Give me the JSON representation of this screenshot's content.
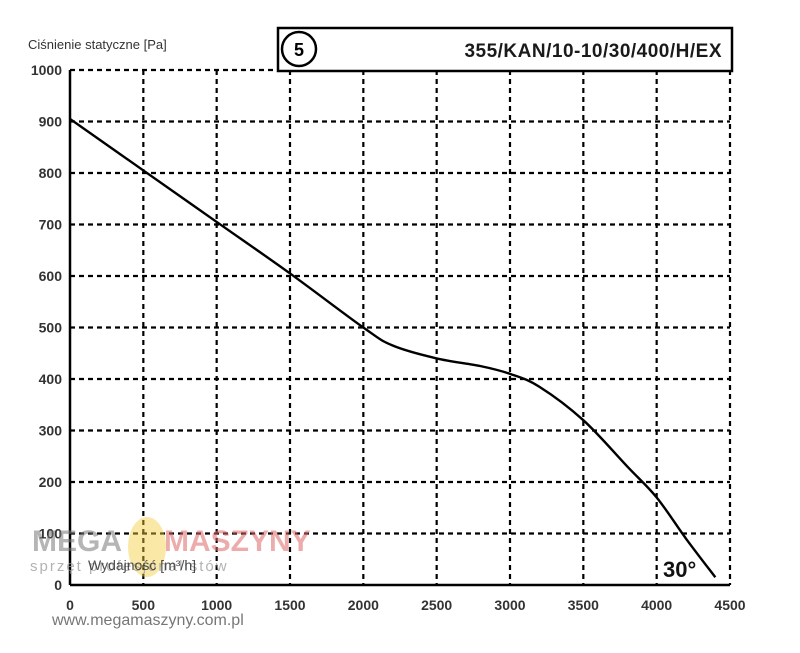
{
  "chart_data": {
    "type": "line",
    "ylabel": "Ciśnienie statyczne [Pa]",
    "xlabel": "Wydajność [m³/h]",
    "model": "355/KAN/10-10/30/400/H/EX",
    "curve_number": "5",
    "angle_label": "30°",
    "xlim": [
      0,
      4500
    ],
    "ylim": [
      0,
      1000
    ],
    "x_ticks": [
      "0",
      "500",
      "1000",
      "1500",
      "2000",
      "2500",
      "3000",
      "3500",
      "4000",
      "4500"
    ],
    "y_ticks": [
      "0",
      "100",
      "200",
      "300",
      "400",
      "500",
      "600",
      "700",
      "800",
      "900",
      "1000"
    ],
    "grid": true,
    "series": [
      {
        "x": [
          0,
          500,
          1000,
          1500,
          2000,
          2200,
          2500,
          2800,
          3000,
          3200,
          3500,
          3800,
          4000,
          4200,
          4400
        ],
        "y": [
          905,
          805,
          705,
          605,
          500,
          465,
          440,
          425,
          410,
          385,
          320,
          230,
          170,
          90,
          15
        ]
      }
    ]
  },
  "watermark": {
    "brand_left": "MEGA",
    "brand_right": "MASZYNY",
    "tagline": "sprzęt profesjonalistów",
    "url": "www.megamaszyny.com.pl"
  },
  "colors": {
    "grid": "#000000",
    "curve": "#000000",
    "accent": "#f5cf3a"
  }
}
